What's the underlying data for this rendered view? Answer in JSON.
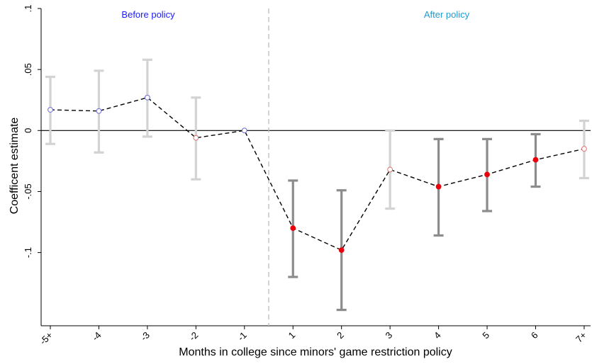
{
  "chart_data": {
    "type": "line",
    "title": "",
    "xlabel": "Months in college since minors' game restriction policy",
    "ylabel": "Coefficent estimate",
    "categories": [
      "-5+",
      "-4",
      "-3",
      "-2",
      "-1",
      "1",
      "2",
      "3",
      "4",
      "5",
      "6",
      "7+"
    ],
    "ylim": [
      -0.16,
      0.1
    ],
    "yticks": [
      {
        "value": 0.1,
        "label": ".1"
      },
      {
        "value": 0.05,
        "label": ".05"
      },
      {
        "value": 0,
        "label": "0"
      },
      {
        "value": -0.05,
        "label": "-.05"
      },
      {
        "value": -0.1,
        "label": "-.1"
      }
    ],
    "policy_line_between": [
      "-1",
      "1"
    ],
    "annotations": {
      "before": "Before policy",
      "after": "After policy"
    },
    "series": [
      {
        "estimates": [
          0.017,
          0.016,
          0.027,
          -0.006,
          0.0,
          -0.08,
          -0.098,
          -0.032,
          -0.046,
          -0.036,
          -0.024,
          -0.015
        ],
        "ci_low": [
          -0.011,
          -0.018,
          -0.005,
          -0.04,
          null,
          -0.12,
          -0.147,
          -0.064,
          -0.086,
          -0.066,
          -0.046,
          -0.039
        ],
        "ci_high": [
          0.044,
          0.049,
          0.058,
          0.027,
          null,
          -0.041,
          -0.049,
          0.0,
          -0.007,
          -0.007,
          -0.003,
          0.008
        ],
        "significant": [
          false,
          false,
          false,
          false,
          false,
          true,
          true,
          false,
          true,
          true,
          true,
          false
        ],
        "marker_style": [
          "blue-hollow",
          "blue-hollow",
          "blue-hollow",
          "red-hollow",
          "blue-hollow",
          "red-filled",
          "red-filled",
          "red-hollow",
          "red-filled",
          "red-filled",
          "red-filled",
          "red-hollow"
        ]
      }
    ],
    "colors": {
      "ci_insignificant": "#d3d3d3",
      "ci_significant": "#8c8c8c",
      "marker_blue": "#6b6bd6",
      "marker_red": "#e8000b",
      "marker_red_hollow": "#e07070",
      "before_text": "#1a1aff",
      "after_text": "#1f9bcf",
      "policy_line": "#bfbfbf"
    }
  }
}
